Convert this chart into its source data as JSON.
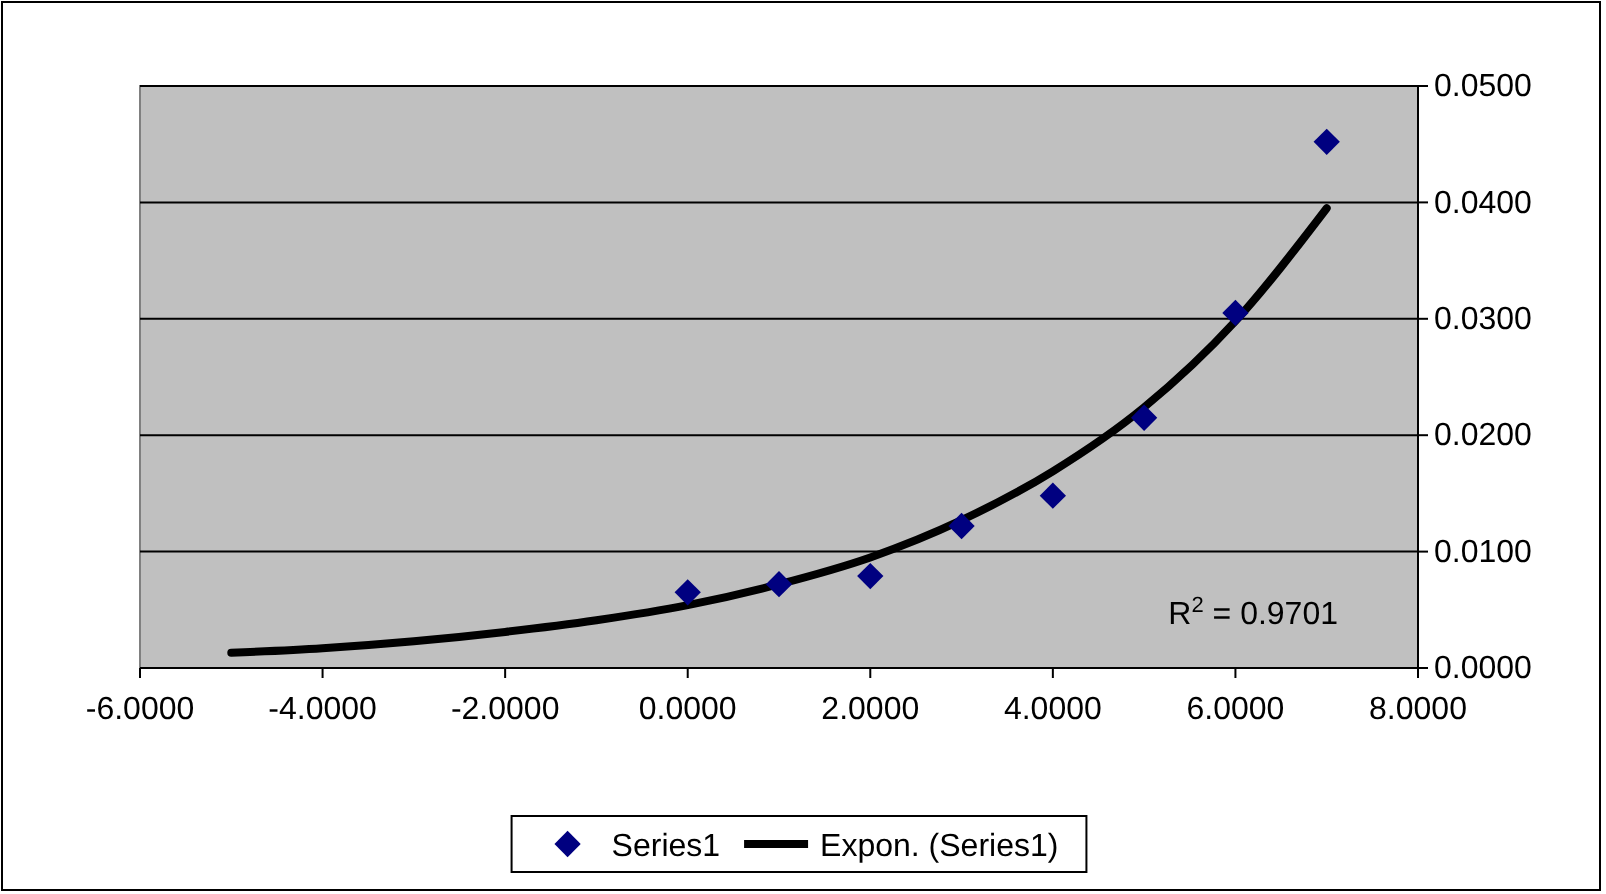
{
  "chart_data": {
    "type": "scatter",
    "xlim": [
      -6,
      8
    ],
    "ylim": [
      0,
      0.05
    ],
    "xticks": [
      {
        "value": -6,
        "label": "-6.0000"
      },
      {
        "value": -4,
        "label": "-4.0000"
      },
      {
        "value": -2,
        "label": "-2.0000"
      },
      {
        "value": 0,
        "label": "0.0000"
      },
      {
        "value": 2,
        "label": "2.0000"
      },
      {
        "value": 4,
        "label": "4.0000"
      },
      {
        "value": 6,
        "label": "6.0000"
      },
      {
        "value": 8,
        "label": "8.0000"
      }
    ],
    "yticks": [
      {
        "value": 0,
        "label": "0.0000"
      },
      {
        "value": 0.01,
        "label": "0.0100"
      },
      {
        "value": 0.02,
        "label": "0.0200"
      },
      {
        "value": 0.03,
        "label": "0.0300"
      },
      {
        "value": 0.04,
        "label": "0.0400"
      },
      {
        "value": 0.05,
        "label": "0.0500"
      }
    ],
    "grid": "y",
    "legend": "bottom",
    "series": [
      {
        "name": "Series1",
        "color": "#000080",
        "marker": "diamond",
        "x": [
          0,
          1,
          2,
          3,
          4,
          5,
          6,
          7
        ],
        "values": [
          0.0065,
          0.0072,
          0.0079,
          0.0122,
          0.0148,
          0.0215,
          0.0305,
          0.0452
        ]
      },
      {
        "name": "Expon. (Series1)",
        "type": "line",
        "color": "#000000",
        "marker": "none",
        "x": [
          -5,
          -4,
          -3,
          -2,
          -1,
          0,
          1,
          2,
          3,
          4,
          5,
          6,
          7
        ],
        "values": [
          0.0013,
          0.0017,
          0.0023,
          0.0031,
          0.0041,
          0.0054,
          0.0072,
          0.0095,
          0.0127,
          0.0169,
          0.0224,
          0.0298,
          0.0395
        ]
      }
    ],
    "annotations": [
      "R$^{2}$ = 0.9701"
    ]
  }
}
